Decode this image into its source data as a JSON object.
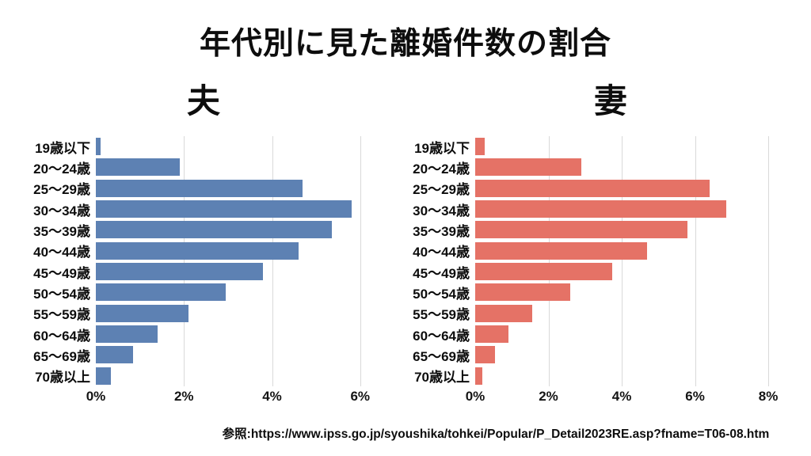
{
  "title": "年代別に見た離婚件数の割合",
  "source": "参照:https://www.ipss.go.jp/syoushika/tohkei/Popular/P_Detail2023RE.asp?fname=T06-08.htm",
  "chart_data": [
    {
      "type": "bar",
      "orientation": "horizontal",
      "title": "夫",
      "color": "#5d81b3",
      "grid": true,
      "categories": [
        "19歳以下",
        "20〜24歳",
        "25〜29歳",
        "30〜34歳",
        "35〜39歳",
        "40〜44歳",
        "45〜49歳",
        "50〜54歳",
        "55〜59歳",
        "60〜64歳",
        "65〜69歳",
        "70歳以上"
      ],
      "values": [
        0.1,
        1.9,
        4.7,
        5.8,
        5.35,
        4.6,
        3.8,
        2.95,
        2.1,
        1.4,
        0.85,
        0.35
      ],
      "xlabel": "",
      "ylabel": "",
      "xlim": [
        0,
        6.22
      ],
      "ticks": [
        0,
        2,
        4,
        6
      ],
      "tick_labels": [
        "0%",
        "2%",
        "4%",
        "6%"
      ]
    },
    {
      "type": "bar",
      "orientation": "horizontal",
      "title": "妻",
      "color": "#e57266",
      "grid": true,
      "categories": [
        "19歳以下",
        "20〜24歳",
        "25〜29歳",
        "30〜34歳",
        "35〜39歳",
        "40〜44歳",
        "45〜49歳",
        "50〜54歳",
        "55〜59歳",
        "60〜64歳",
        "65〜69歳",
        "70歳以上"
      ],
      "values": [
        0.25,
        2.9,
        6.4,
        6.85,
        5.8,
        4.7,
        3.75,
        2.6,
        1.55,
        0.9,
        0.55,
        0.2
      ],
      "xlabel": "",
      "ylabel": "",
      "xlim": [
        0,
        8.43
      ],
      "ticks": [
        0,
        2,
        4,
        6,
        8
      ],
      "tick_labels": [
        "0%",
        "2%",
        "4%",
        "6%",
        "8%"
      ]
    }
  ]
}
